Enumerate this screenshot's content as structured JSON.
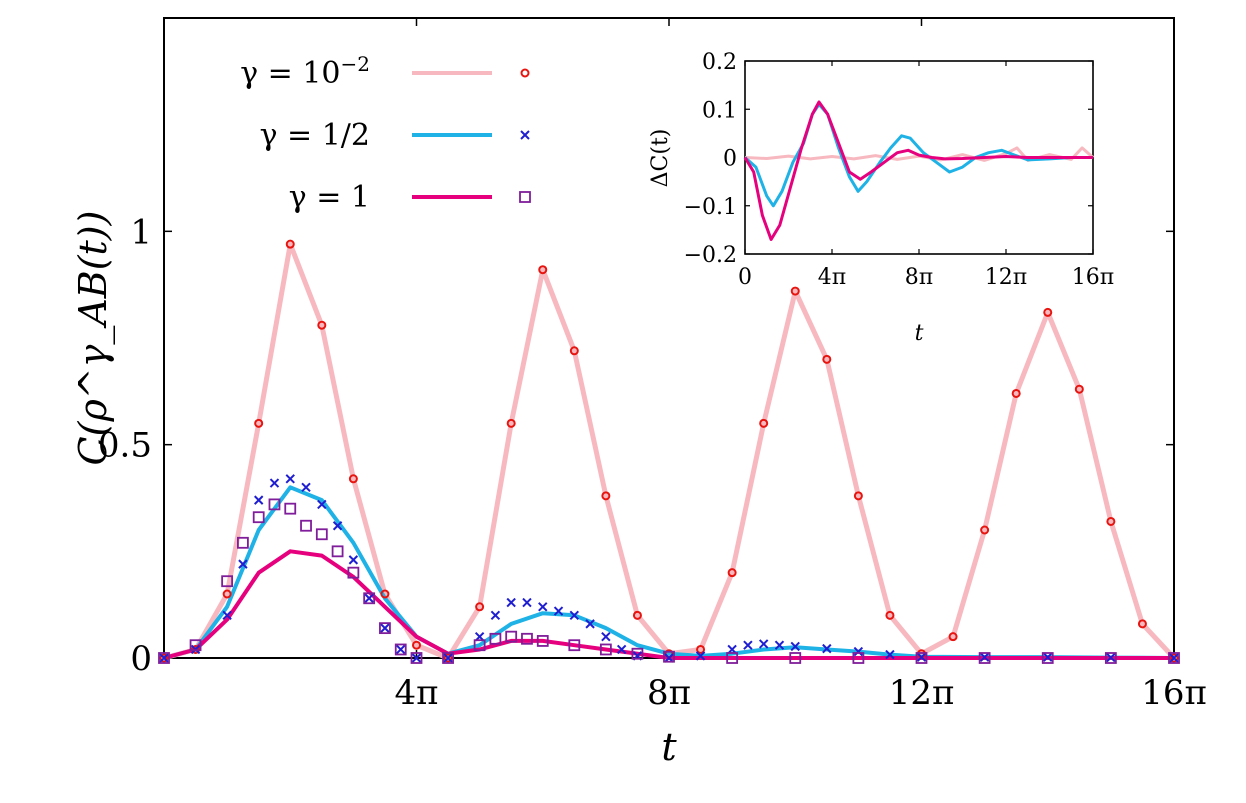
{
  "chart_data": [
    {
      "type": "line",
      "xlabel": "t",
      "ylabel": "C(ρ^γ_AB(t))",
      "xlim": [
        0,
        16
      ],
      "xlim_unit": "π",
      "ylim": [
        0,
        1.5
      ],
      "xticks": [
        4,
        8,
        12,
        16
      ],
      "xtick_labels": [
        "4π",
        "8π",
        "12π",
        "16π"
      ],
      "yticks": [
        0,
        0.5,
        1
      ],
      "ytick_labels": [
        "0",
        "0.5",
        "1"
      ],
      "grid": false,
      "legend_position": "top-left",
      "series": [
        {
          "name": "γ = 10^−2",
          "style": "line+markers",
          "line_color": "#f7b9bf",
          "marker": "circle",
          "marker_color": "#e8140f",
          "line_points": [
            [
              0,
              0
            ],
            [
              0.5,
              0.02
            ],
            [
              1,
              0.15
            ],
            [
              1.5,
              0.55
            ],
            [
              2,
              0.97
            ],
            [
              2.5,
              0.78
            ],
            [
              3,
              0.42
            ],
            [
              3.5,
              0.15
            ],
            [
              4,
              0.03
            ],
            [
              4.5,
              0.0
            ],
            [
              5,
              0.12
            ],
            [
              5.5,
              0.55
            ],
            [
              6,
              0.91
            ],
            [
              6.5,
              0.72
            ],
            [
              7,
              0.38
            ],
            [
              7.5,
              0.1
            ],
            [
              8,
              0.01
            ],
            [
              8.5,
              0.02
            ],
            [
              9,
              0.2
            ],
            [
              9.5,
              0.55
            ],
            [
              10,
              0.86
            ],
            [
              10.5,
              0.7
            ],
            [
              11,
              0.38
            ],
            [
              11.5,
              0.1
            ],
            [
              12,
              0.01
            ],
            [
              12.5,
              0.05
            ],
            [
              13,
              0.3
            ],
            [
              13.5,
              0.62
            ],
            [
              14,
              0.81
            ],
            [
              14.5,
              0.63
            ],
            [
              15,
              0.32
            ],
            [
              15.5,
              0.08
            ],
            [
              16,
              0.0
            ]
          ]
        },
        {
          "name": "γ = 1/2",
          "style": "line+markers",
          "line_color": "#1fb2e6",
          "marker": "cross",
          "marker_color": "#1f1fd1",
          "line_points": [
            [
              0,
              0
            ],
            [
              0.5,
              0.02
            ],
            [
              1,
              0.12
            ],
            [
              1.5,
              0.3
            ],
            [
              2,
              0.4
            ],
            [
              2.5,
              0.37
            ],
            [
              3,
              0.27
            ],
            [
              3.5,
              0.14
            ],
            [
              4,
              0.05
            ],
            [
              4.5,
              0.01
            ],
            [
              5,
              0.03
            ],
            [
              5.5,
              0.08
            ],
            [
              6,
              0.105
            ],
            [
              6.5,
              0.1
            ],
            [
              7,
              0.07
            ],
            [
              7.5,
              0.03
            ],
            [
              8,
              0.01
            ],
            [
              8.5,
              0.005
            ],
            [
              9,
              0.01
            ],
            [
              9.5,
              0.02
            ],
            [
              10,
              0.025
            ],
            [
              10.5,
              0.02
            ],
            [
              11,
              0.015
            ],
            [
              11.5,
              0.008
            ],
            [
              12,
              0.003
            ],
            [
              13,
              0.002
            ],
            [
              14,
              0.002
            ],
            [
              15,
              0.001
            ],
            [
              16,
              0.0
            ]
          ],
          "marker_points": [
            [
              0,
              0
            ],
            [
              0.5,
              0.02
            ],
            [
              1,
              0.1
            ],
            [
              1.25,
              0.22
            ],
            [
              1.5,
              0.37
            ],
            [
              1.75,
              0.41
            ],
            [
              2,
              0.42
            ],
            [
              2.25,
              0.4
            ],
            [
              2.5,
              0.36
            ],
            [
              2.75,
              0.31
            ],
            [
              3,
              0.23
            ],
            [
              3.25,
              0.14
            ],
            [
              3.5,
              0.07
            ],
            [
              3.75,
              0.02
            ],
            [
              4,
              0.0
            ],
            [
              4.5,
              0.0
            ],
            [
              5,
              0.05
            ],
            [
              5.25,
              0.1
            ],
            [
              5.5,
              0.13
            ],
            [
              5.75,
              0.13
            ],
            [
              6,
              0.12
            ],
            [
              6.25,
              0.11
            ],
            [
              6.5,
              0.1
            ],
            [
              6.75,
              0.08
            ],
            [
              7,
              0.05
            ],
            [
              7.25,
              0.02
            ],
            [
              7.5,
              0.005
            ],
            [
              8,
              0.0
            ],
            [
              8.5,
              0.005
            ],
            [
              9,
              0.02
            ],
            [
              9.25,
              0.03
            ],
            [
              9.5,
              0.033
            ],
            [
              9.75,
              0.03
            ],
            [
              10,
              0.027
            ],
            [
              10.5,
              0.022
            ],
            [
              11,
              0.015
            ],
            [
              11.5,
              0.008
            ],
            [
              12,
              0.002
            ],
            [
              13,
              0.002
            ],
            [
              14,
              0.002
            ],
            [
              15,
              0.001
            ],
            [
              16,
              0.0
            ]
          ]
        },
        {
          "name": "γ = 1",
          "style": "line+markers",
          "line_color": "#e6007e",
          "marker": "square",
          "marker_color": "#7f1d9a",
          "line_points": [
            [
              0,
              0
            ],
            [
              0.5,
              0.02
            ],
            [
              1,
              0.09
            ],
            [
              1.5,
              0.2
            ],
            [
              2,
              0.25
            ],
            [
              2.5,
              0.24
            ],
            [
              3,
              0.19
            ],
            [
              3.5,
              0.12
            ],
            [
              4,
              0.05
            ],
            [
              4.5,
              0.01
            ],
            [
              5,
              0.02
            ],
            [
              5.5,
              0.04
            ],
            [
              6,
              0.04
            ],
            [
              6.5,
              0.03
            ],
            [
              7,
              0.02
            ],
            [
              7.5,
              0.01
            ],
            [
              8,
              0.0
            ],
            [
              16,
              0.0
            ]
          ],
          "marker_points": [
            [
              0,
              0
            ],
            [
              0.5,
              0.03
            ],
            [
              1,
              0.18
            ],
            [
              1.25,
              0.27
            ],
            [
              1.5,
              0.33
            ],
            [
              1.75,
              0.36
            ],
            [
              2,
              0.35
            ],
            [
              2.25,
              0.31
            ],
            [
              2.5,
              0.29
            ],
            [
              2.75,
              0.25
            ],
            [
              3,
              0.2
            ],
            [
              3.25,
              0.14
            ],
            [
              3.5,
              0.07
            ],
            [
              3.75,
              0.02
            ],
            [
              4,
              0.0
            ],
            [
              4.5,
              0.0
            ],
            [
              5,
              0.03
            ],
            [
              5.25,
              0.045
            ],
            [
              5.5,
              0.05
            ],
            [
              5.75,
              0.045
            ],
            [
              6,
              0.04
            ],
            [
              6.5,
              0.03
            ],
            [
              7,
              0.02
            ],
            [
              7.5,
              0.01
            ],
            [
              8,
              0.003
            ],
            [
              9,
              0.0
            ],
            [
              10,
              0.0
            ],
            [
              11,
              0.0
            ],
            [
              12,
              0.0
            ],
            [
              13,
              0.0
            ],
            [
              14,
              0.0
            ],
            [
              15,
              0.0
            ],
            [
              16,
              0.0
            ]
          ]
        }
      ],
      "legend": [
        {
          "label": "γ = 10",
          "sup": "−2"
        },
        {
          "label": "γ = 1/2",
          "sup": ""
        },
        {
          "label": "γ = 1",
          "sup": ""
        }
      ]
    },
    {
      "type": "line",
      "role": "inset",
      "xlabel": "t",
      "ylabel": "ΔC(t)",
      "xlim": [
        0,
        16
      ],
      "xlim_unit": "π",
      "ylim": [
        -0.2,
        0.2
      ],
      "xticks": [
        0,
        4,
        8,
        12,
        16
      ],
      "xtick_labels": [
        "0",
        "4π",
        "8π",
        "12π",
        "16π"
      ],
      "yticks": [
        -0.2,
        -0.1,
        0,
        0.1,
        0.2
      ],
      "ytick_labels": [
        "−0.2",
        "−0.1",
        "0",
        "0.1",
        "0.2"
      ],
      "grid": false,
      "series": [
        {
          "name": "γ = 10^−2",
          "line_color": "#f7b9bf",
          "points": [
            [
              0,
              0
            ],
            [
              1,
              -0.002
            ],
            [
              2,
              0.003
            ],
            [
              3,
              -0.003
            ],
            [
              4,
              0.002
            ],
            [
              5,
              -0.003
            ],
            [
              6,
              0.004
            ],
            [
              7,
              -0.004
            ],
            [
              8,
              0.003
            ],
            [
              9,
              -0.005
            ],
            [
              10,
              0.006
            ],
            [
              11,
              -0.006
            ],
            [
              12,
              0.008
            ],
            [
              12.5,
              0.02
            ],
            [
              13,
              -0.006
            ],
            [
              14,
              0.006
            ],
            [
              15,
              -0.004
            ],
            [
              15.5,
              0.02
            ],
            [
              16,
              0.0
            ]
          ]
        },
        {
          "name": "γ = 1/2",
          "line_color": "#1fb2e6",
          "points": [
            [
              0,
              0
            ],
            [
              0.5,
              -0.02
            ],
            [
              1,
              -0.08
            ],
            [
              1.3,
              -0.1
            ],
            [
              1.7,
              -0.07
            ],
            [
              2.2,
              -0.01
            ],
            [
              2.7,
              0.03
            ],
            [
              3.1,
              0.09
            ],
            [
              3.4,
              0.11
            ],
            [
              3.8,
              0.09
            ],
            [
              4.3,
              0.02
            ],
            [
              4.8,
              -0.04
            ],
            [
              5.2,
              -0.07
            ],
            [
              5.6,
              -0.05
            ],
            [
              6.2,
              -0.01
            ],
            [
              6.7,
              0.02
            ],
            [
              7.2,
              0.045
            ],
            [
              7.6,
              0.04
            ],
            [
              8.2,
              0.01
            ],
            [
              8.8,
              -0.01
            ],
            [
              9.4,
              -0.03
            ],
            [
              10,
              -0.02
            ],
            [
              10.6,
              0.0
            ],
            [
              11.2,
              0.01
            ],
            [
              11.8,
              0.015
            ],
            [
              12.4,
              0.005
            ],
            [
              13,
              -0.005
            ],
            [
              14,
              -0.003
            ],
            [
              15,
              0.0
            ],
            [
              16,
              0.0
            ]
          ]
        },
        {
          "name": "γ = 1",
          "line_color": "#e6007e",
          "points": [
            [
              0,
              0
            ],
            [
              0.4,
              -0.03
            ],
            [
              0.8,
              -0.12
            ],
            [
              1.2,
              -0.17
            ],
            [
              1.6,
              -0.14
            ],
            [
              2.1,
              -0.06
            ],
            [
              2.6,
              0.02
            ],
            [
              3.1,
              0.09
            ],
            [
              3.4,
              0.115
            ],
            [
              3.8,
              0.09
            ],
            [
              4.3,
              0.03
            ],
            [
              4.8,
              -0.03
            ],
            [
              5.3,
              -0.045
            ],
            [
              5.8,
              -0.03
            ],
            [
              6.4,
              -0.01
            ],
            [
              7,
              0.01
            ],
            [
              7.5,
              0.015
            ],
            [
              8,
              0.005
            ],
            [
              8.6,
              0.0
            ],
            [
              9.2,
              -0.003
            ],
            [
              10,
              -0.002
            ],
            [
              11,
              0.0
            ],
            [
              12,
              0.002
            ],
            [
              13,
              0.0
            ],
            [
              14,
              0.0
            ],
            [
              16,
              0.0
            ]
          ]
        }
      ]
    }
  ]
}
